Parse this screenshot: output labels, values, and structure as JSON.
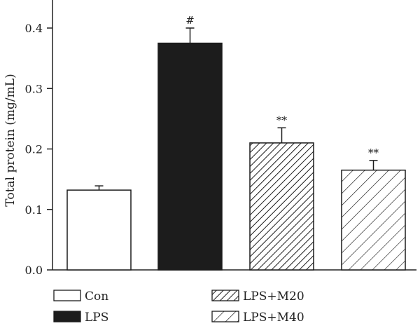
{
  "chart_data": {
    "type": "bar",
    "title": "",
    "xlabel": "",
    "ylabel": "Total protein (mg/mL)",
    "ylim": [
      0.0,
      0.45
    ],
    "yticks": [
      "0.0",
      "0.1",
      "0.2",
      "0.3",
      "0.4"
    ],
    "grid": false,
    "legend_position": "bottom",
    "categories": [
      "Con",
      "LPS",
      "LPS+M20",
      "LPS+M40"
    ],
    "values": [
      0.132,
      0.375,
      0.21,
      0.165
    ],
    "errors": [
      0.007,
      0.025,
      0.025,
      0.016
    ],
    "fills": [
      "white",
      "black",
      "dense-hatch",
      "sparse-hatch"
    ],
    "annotations": [
      "",
      "#",
      "**",
      "**"
    ]
  },
  "colors": {
    "bar_dark": "#1c1c1c",
    "axis": "#222222"
  }
}
